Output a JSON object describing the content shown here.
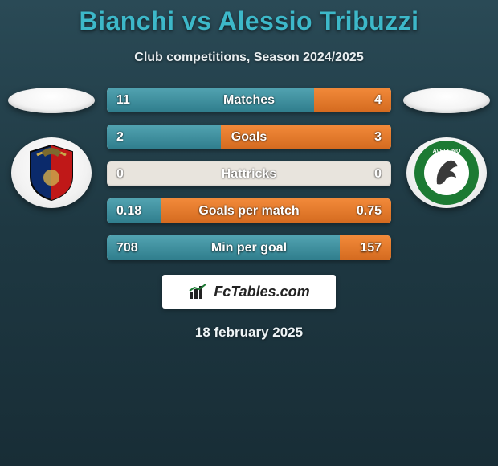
{
  "header": {
    "title": "Bianchi vs Alessio Tribuzzi",
    "title_color": "#3db8c9",
    "title_fontsize": 32,
    "subtitle": "Club competitions, Season 2024/2025",
    "subtitle_color": "#e8eef0",
    "subtitle_fontsize": 16
  },
  "background": {
    "gradient_top": "#2a4a56",
    "gradient_mid": "#1e3842",
    "gradient_bottom": "#182d36"
  },
  "left_player": {
    "name": "Bianchi",
    "club_badge": "casertana",
    "badge_colors": {
      "top": "#0b2a6b",
      "bottom": "#c01818",
      "outline": "#0a0a0a",
      "eagle": "#7d6a2e"
    }
  },
  "right_player": {
    "name": "Alessio Tribuzzi",
    "club_badge": "avellino",
    "badge_colors": {
      "ring": "#1c7a33",
      "inner": "#ffffff",
      "wolf": "#3a3a3a"
    }
  },
  "stats": {
    "bar_track_color": "#e8e4dd",
    "left_bar_gradient": [
      "#52a3b1",
      "#2f7d8c"
    ],
    "right_bar_gradient": [
      "#f28a3a",
      "#d46a1f"
    ],
    "label_color": "#ffffff",
    "value_color": "#ffffff",
    "label_fontsize": 16,
    "value_fontsize": 16,
    "rows": [
      {
        "label": "Matches",
        "left": "11",
        "right": "4",
        "left_pct": 73,
        "right_pct": 27
      },
      {
        "label": "Goals",
        "left": "2",
        "right": "3",
        "left_pct": 40,
        "right_pct": 60
      },
      {
        "label": "Hattricks",
        "left": "0",
        "right": "0",
        "left_pct": 0,
        "right_pct": 0
      },
      {
        "label": "Goals per match",
        "left": "0.18",
        "right": "0.75",
        "left_pct": 19,
        "right_pct": 81
      },
      {
        "label": "Min per goal",
        "left": "708",
        "right": "157",
        "left_pct": 82,
        "right_pct": 18
      }
    ]
  },
  "footer": {
    "logo_text": "FcTables.com",
    "logo_bg": "#ffffff",
    "logo_text_color": "#222222",
    "date": "18 february 2025",
    "date_color": "#eef4f6"
  }
}
